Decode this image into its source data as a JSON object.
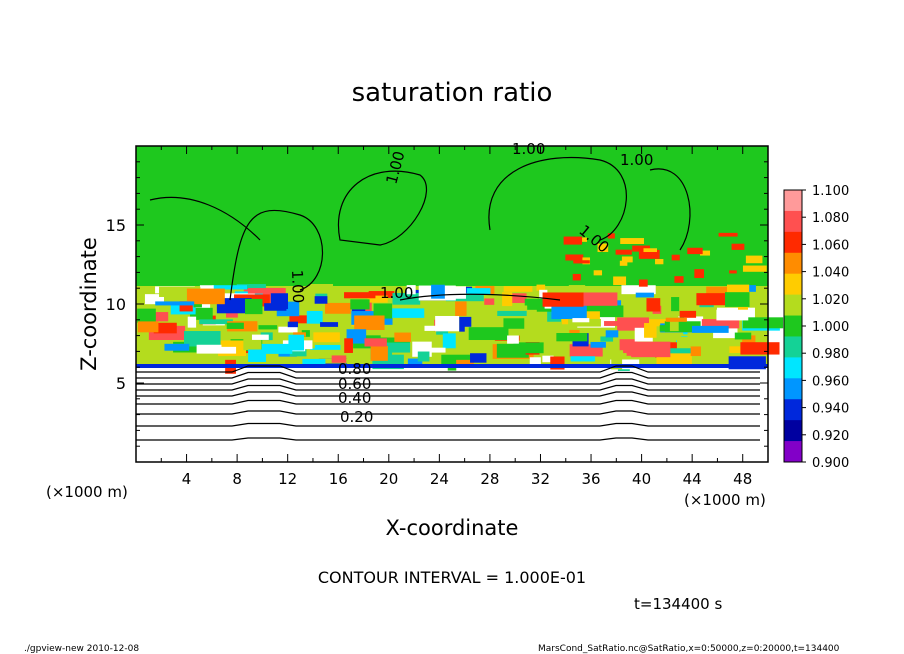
{
  "chart_data": {
    "type": "heatmap",
    "title": "saturation ratio",
    "xlabel": "X-coordinate",
    "ylabel": "Z-coordinate",
    "x_unit": "(×1000 m)",
    "z_unit": "(×1000 m)",
    "xlim": [
      0,
      50
    ],
    "ylim": [
      0,
      20
    ],
    "x_ticks": [
      "4",
      "8",
      "12",
      "16",
      "20",
      "24",
      "28",
      "32",
      "36",
      "40",
      "44",
      "48"
    ],
    "y_ticks": [
      "5",
      "10",
      "15"
    ],
    "contour_labels": [
      "1.00",
      "1.00",
      "1.00",
      "1.00",
      "1.00",
      "1.00",
      "0.80",
      "0.60",
      "0.40",
      "0.20"
    ],
    "colorbar": {
      "labels": [
        "1.100",
        "1.080",
        "1.060",
        "1.040",
        "1.020",
        "1.000",
        "0.980",
        "0.960",
        "0.940",
        "0.920",
        "0.900"
      ],
      "colors": [
        "#ff9a9a",
        "#ff5050",
        "#ff2a00",
        "#ff8c00",
        "#ffcc00",
        "#b4dc1e",
        "#1ec81e",
        "#14d296",
        "#00e6ff",
        "#0096ff",
        "#0028dc",
        "#0000a0",
        "#8200c8"
      ]
    },
    "grid": false,
    "contour_interval_text": "CONTOUR INTERVAL = 1.000E-01",
    "time_text": "t=134400 s"
  },
  "footer": {
    "left": "./gpview-new   2010-12-08",
    "right": "MarsCond_SatRatio.nc@SatRatio,x=0:50000,z=0:20000,t=134400"
  }
}
